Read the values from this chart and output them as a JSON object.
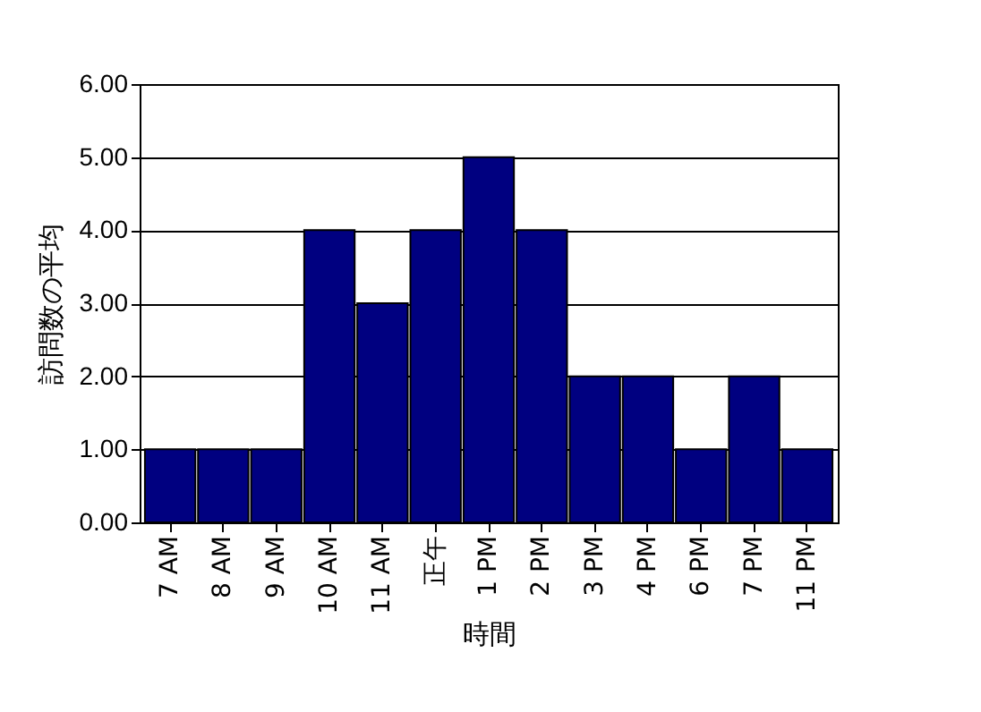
{
  "chart_data": {
    "type": "bar",
    "xlabel": "時間",
    "ylabel": "訪問数の平均",
    "categories": [
      "7 AM",
      "8 AM",
      "9 AM",
      "10 AM",
      "11 AM",
      "正午",
      "1 PM",
      "2 PM",
      "3 PM",
      "4 PM",
      "6 PM",
      "7 PM",
      "11 PM"
    ],
    "values": [
      1,
      1,
      1,
      4,
      3,
      4,
      5,
      4,
      2,
      2,
      1,
      2,
      1
    ],
    "color": "#000080",
    "ylim": [
      0,
      6
    ],
    "yticks": [
      {
        "value": 0,
        "label": "0.00"
      },
      {
        "value": 1,
        "label": "1.00"
      },
      {
        "value": 2,
        "label": "2.00"
      },
      {
        "value": 3,
        "label": "3.00"
      },
      {
        "value": 4,
        "label": "4.00"
      },
      {
        "value": 5,
        "label": "5.00"
      },
      {
        "value": 6,
        "label": "6.00"
      }
    ],
    "grid": "y"
  }
}
